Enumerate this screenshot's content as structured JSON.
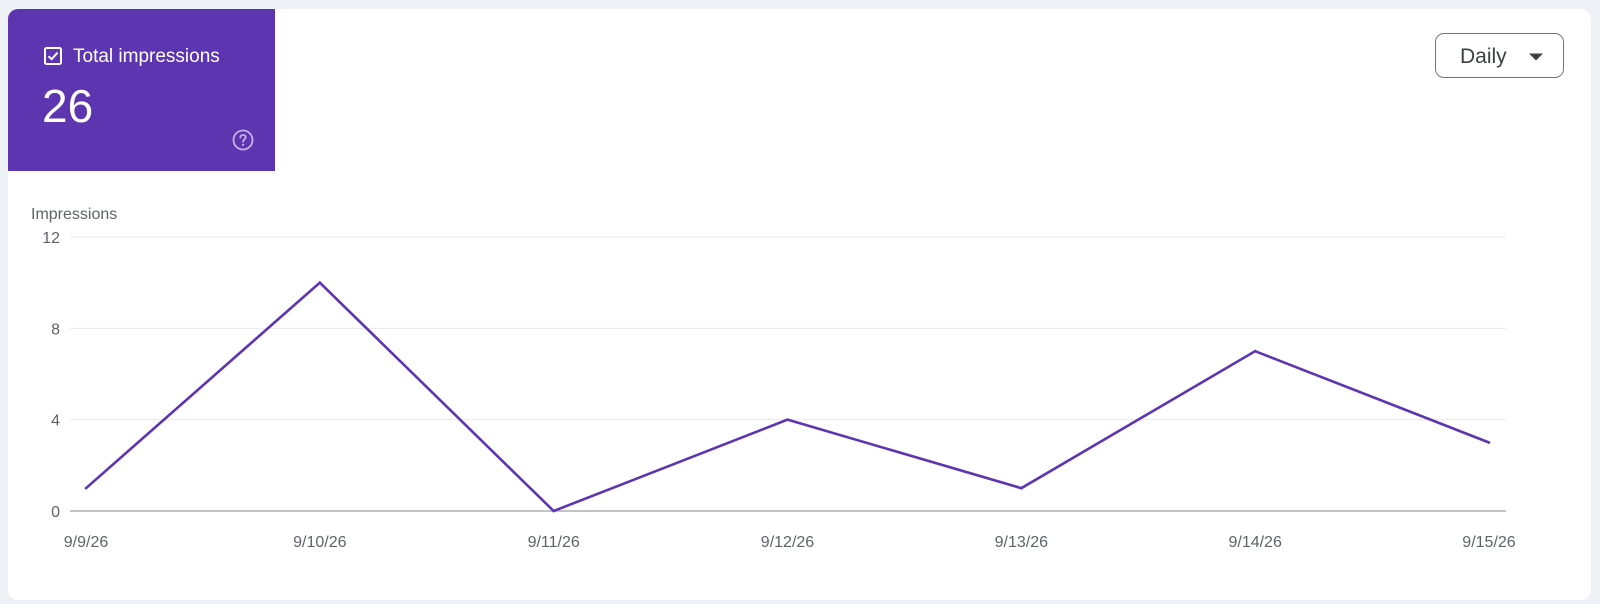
{
  "metric": {
    "label": "Total impressions",
    "value": "26",
    "checked": true,
    "icons": {
      "checkbox": "checkbox-checked-icon",
      "help": "help-circle-icon"
    },
    "color": "#5e35b1"
  },
  "period_selector": {
    "selected": "Daily",
    "icon": "arrow-drop-down-icon"
  },
  "chart_data": {
    "type": "line",
    "ylabel": "Impressions",
    "xlabel": "",
    "title": "",
    "x": [
      "9/9/26",
      "9/10/26",
      "9/11/26",
      "9/12/26",
      "9/13/26",
      "9/14/26",
      "9/15/26"
    ],
    "series": [
      {
        "values": [
          1,
          10,
          0,
          4,
          1,
          7,
          3
        ],
        "color": "#5e35b1"
      }
    ],
    "ylim": [
      0,
      12
    ],
    "yticks": [
      0,
      4,
      8,
      12
    ],
    "grid": true,
    "legend": "none"
  }
}
